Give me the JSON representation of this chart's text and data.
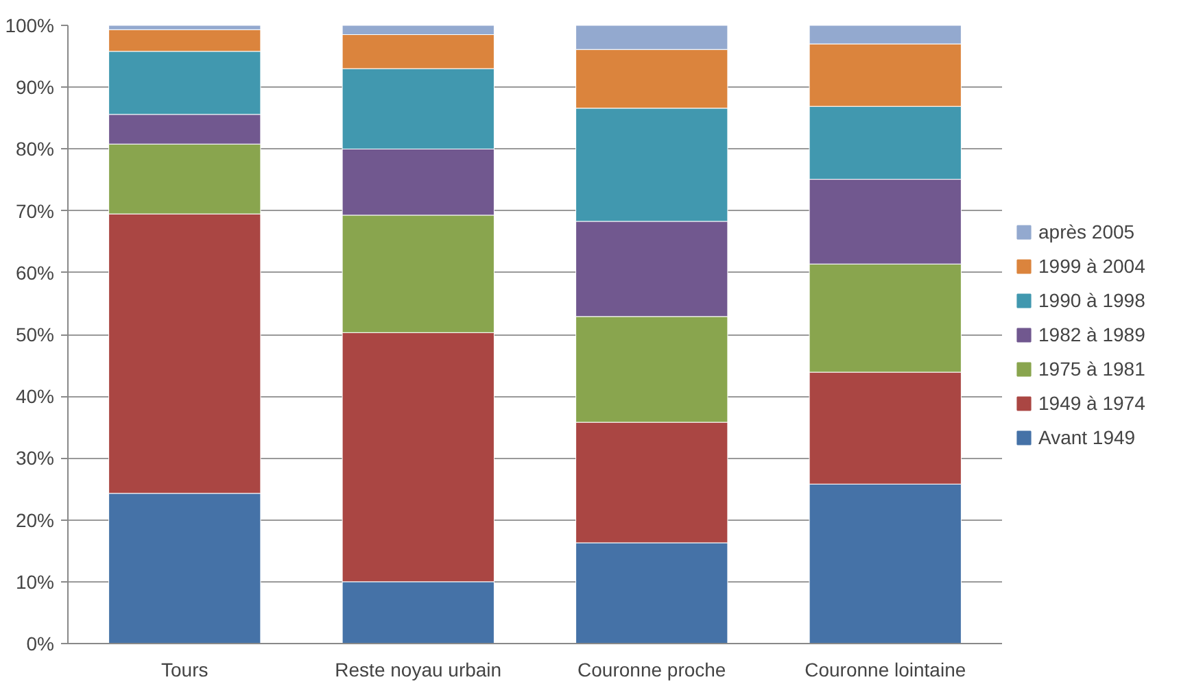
{
  "chart_data": {
    "type": "bar",
    "stacked": true,
    "categories": [
      "Tours",
      "Reste noyau urbain",
      "Couronne proche",
      "Couronne lointaine"
    ],
    "series": [
      {
        "name": "Avant 1949",
        "color": "#4572a7",
        "values": [
          24.3,
          10,
          16.3,
          25.8
        ]
      },
      {
        "name": "1949 à 1974",
        "color": "#aa4643",
        "values": [
          45.2,
          40.3,
          19.5,
          18.1
        ]
      },
      {
        "name": "1975 à 1981",
        "color": "#89a54e",
        "values": [
          11.3,
          19,
          17.1,
          17.5
        ]
      },
      {
        "name": "1982 à 1989",
        "color": "#71588f",
        "values": [
          4.8,
          10.7,
          15.4,
          13.7
        ]
      },
      {
        "name": "1990 à 1998",
        "color": "#4198af",
        "values": [
          10.2,
          13,
          18.3,
          11.8
        ]
      },
      {
        "name": "1999 à 2004",
        "color": "#db843d",
        "values": [
          3.5,
          5.5,
          9.5,
          10.1
        ]
      },
      {
        "name": "après 2005",
        "color": "#93a9cf",
        "values": [
          0.7,
          1.5,
          3.9,
          3.0
        ]
      }
    ],
    "ylim": [
      0,
      100
    ],
    "yticks": [
      {
        "value": 0,
        "label": "0%"
      },
      {
        "value": 10,
        "label": "10%"
      },
      {
        "value": 20,
        "label": "20%"
      },
      {
        "value": 30,
        "label": "30%"
      },
      {
        "value": 40,
        "label": "40%"
      },
      {
        "value": 50,
        "label": "50%"
      },
      {
        "value": 60,
        "label": "60%"
      },
      {
        "value": 70,
        "label": "70%"
      },
      {
        "value": 80,
        "label": "80%"
      },
      {
        "value": 90,
        "label": "90%"
      },
      {
        "value": 100,
        "label": "100%"
      }
    ],
    "grid": "y",
    "legend": "right"
  }
}
